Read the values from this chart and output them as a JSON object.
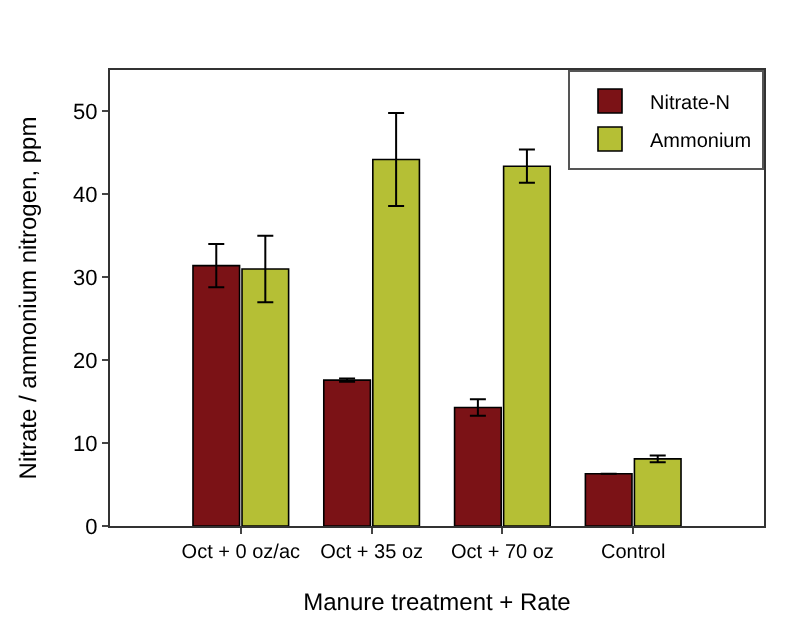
{
  "chart_data": {
    "type": "bar",
    "xlabel": "Manure treatment + Rate",
    "ylabel": "Nitrate / ammonium nitrogen, ppm",
    "categories": [
      "Oct + 0 oz/ac",
      "Oct + 35 oz",
      "Oct + 70 oz",
      "Control"
    ],
    "series": [
      {
        "name": "Nitrate-N",
        "color": "#7b1216",
        "values": [
          31.4,
          17.6,
          14.3,
          6.3
        ],
        "errors": [
          2.6,
          0.2,
          1.0,
          null
        ]
      },
      {
        "name": "Ammonium",
        "color": "#b5bf35",
        "values": [
          31.0,
          44.2,
          43.4,
          8.1
        ],
        "errors": [
          4.0,
          5.6,
          2.0,
          0.4
        ]
      }
    ],
    "ylim": [
      0,
      55
    ],
    "yticks": [
      0,
      10,
      20,
      30,
      40,
      50
    ],
    "legend": "top right"
  }
}
